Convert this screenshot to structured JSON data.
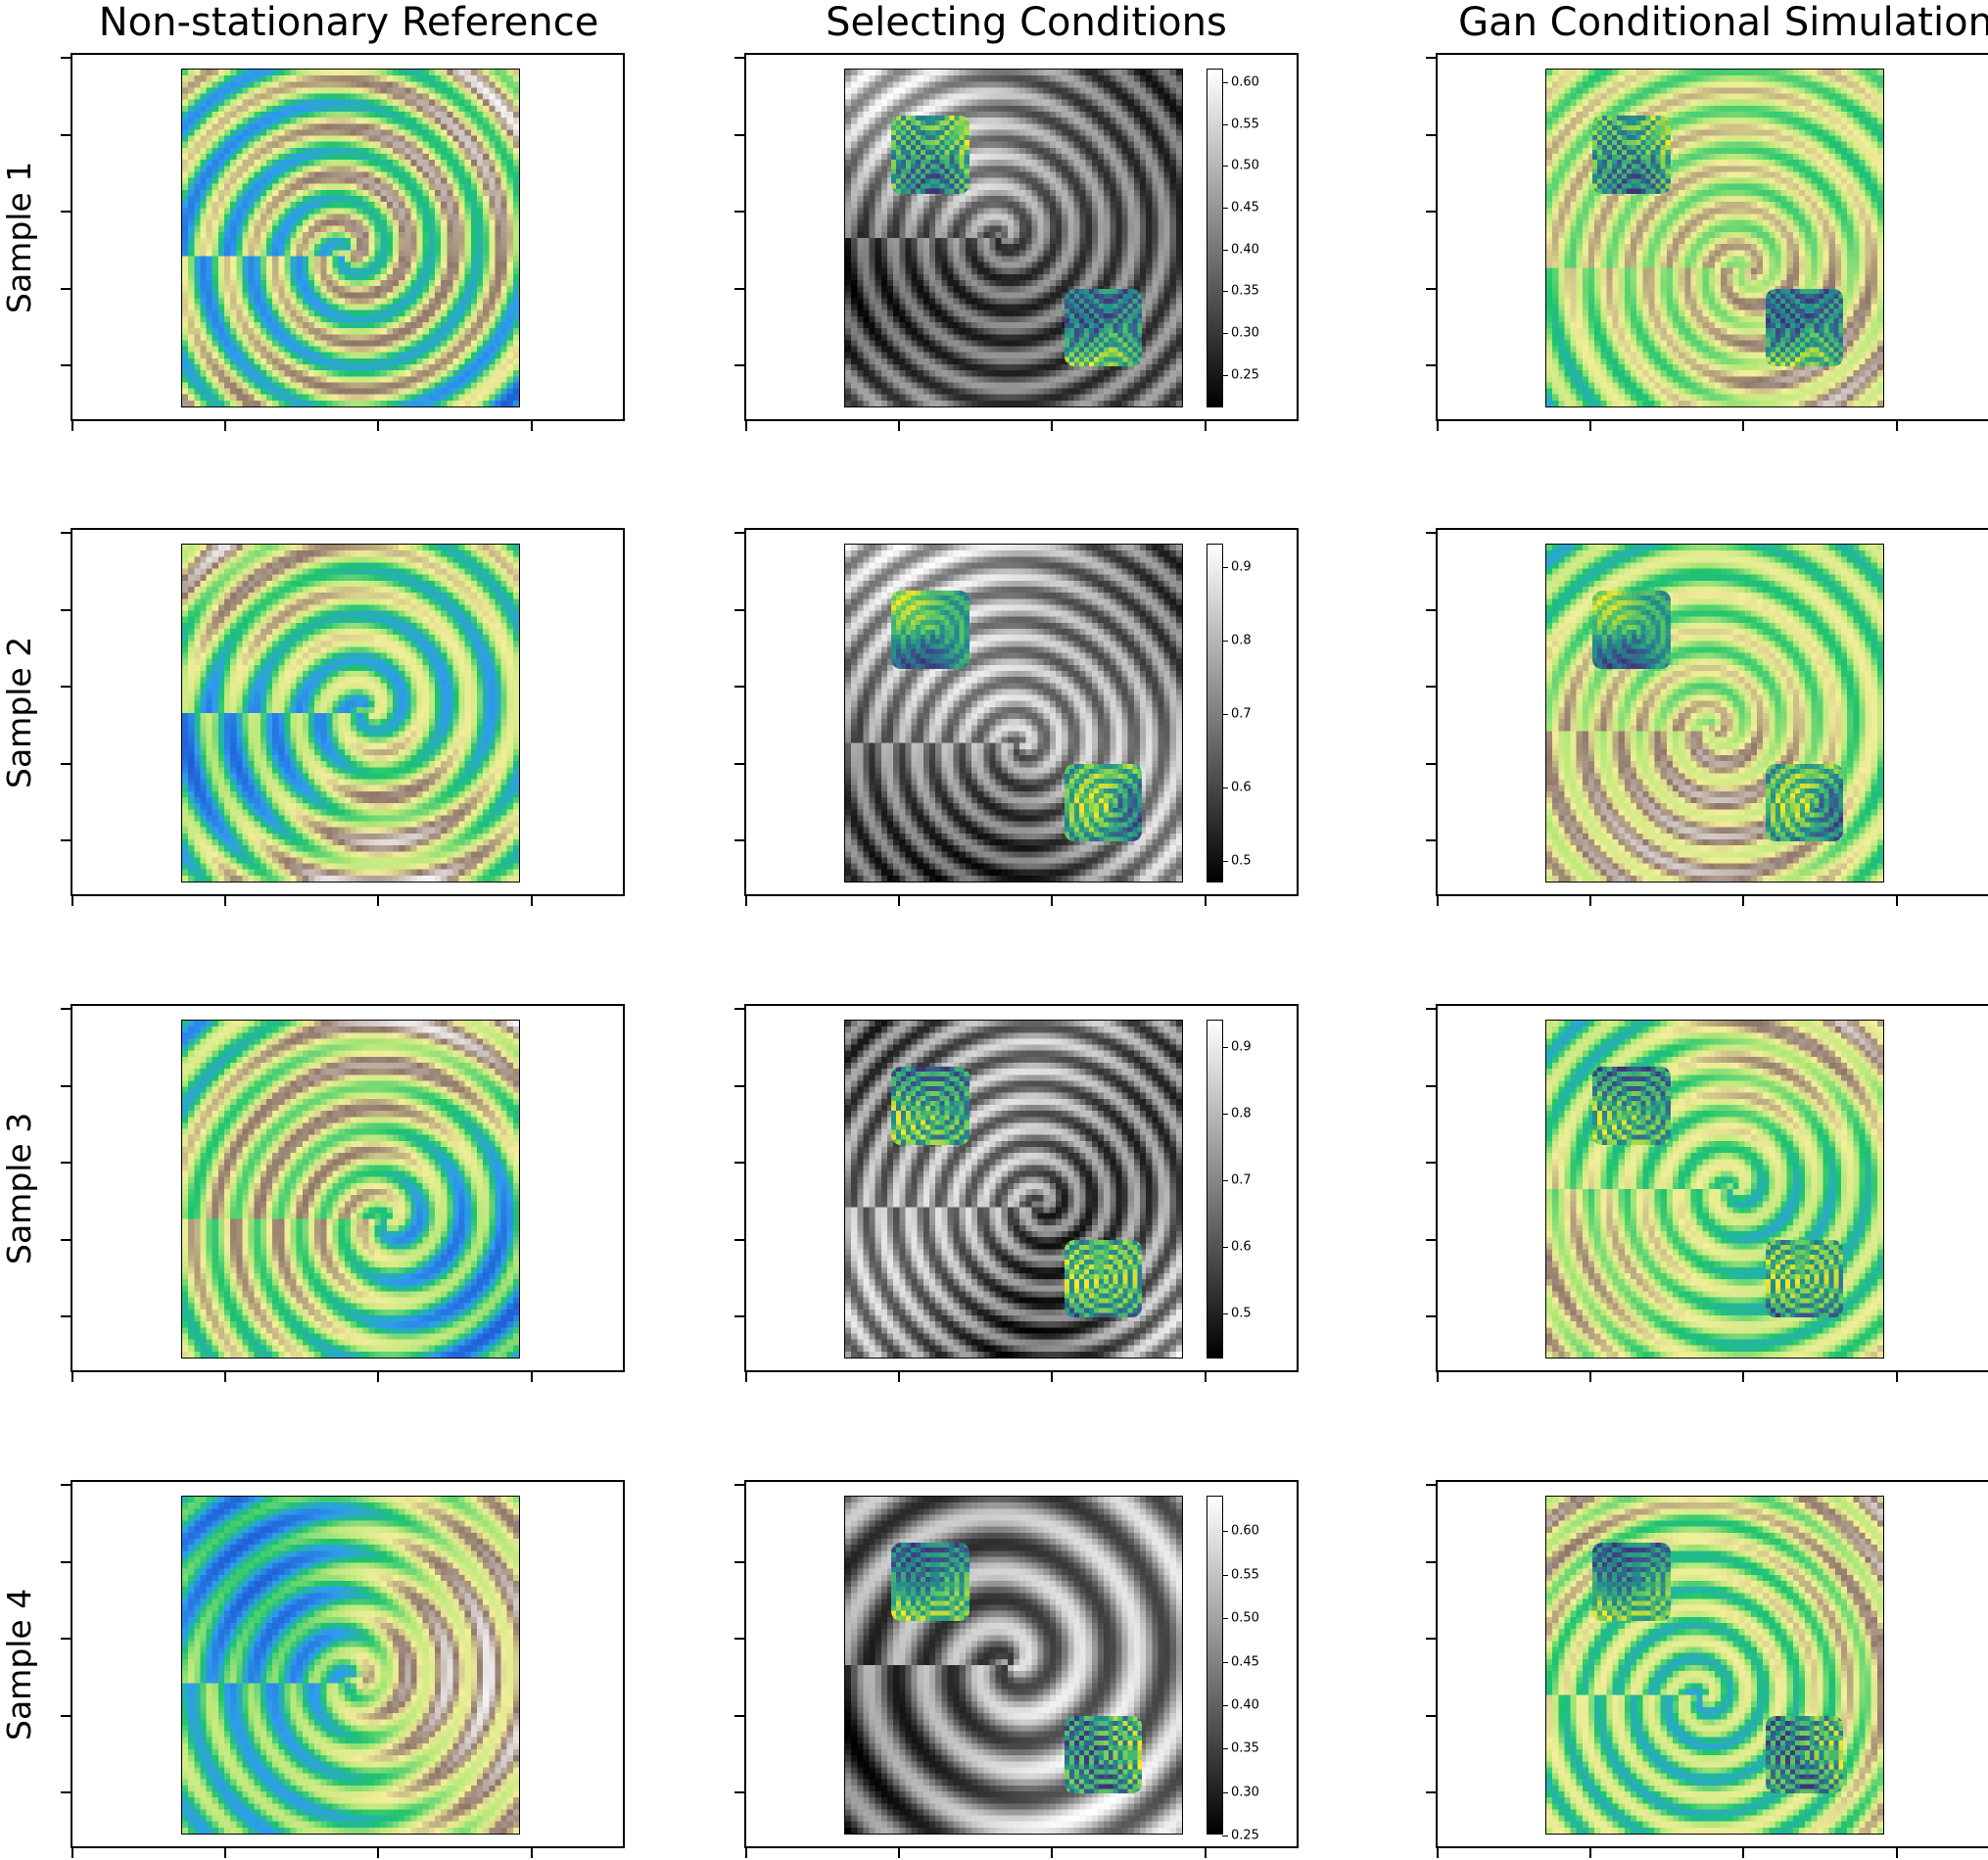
{
  "figure": {
    "column_titles": [
      "Non-stationary Reference",
      "Selecting Conditions",
      "Gan Conditional Simulation"
    ],
    "row_labels": [
      "Sample 1",
      "Sample 2",
      "Sample 3",
      "Sample 4"
    ],
    "panels": {
      "reference": "terrain-colormap spatial field",
      "conditions": "grayscale field with two viridis conditioning patches",
      "simulation": "terrain-colormap simulated field with two viridis conditioning patches"
    },
    "colorbars": [
      {
        "sample": "Sample 1",
        "ticks": [
          "0.60",
          "0.55",
          "0.50",
          "0.45",
          "0.40",
          "0.35",
          "0.30",
          "0.25"
        ],
        "min": 0.21,
        "max": 0.615
      },
      {
        "sample": "Sample 2",
        "ticks": [
          "0.9",
          "0.8",
          "0.7",
          "0.6",
          "0.5"
        ],
        "min": 0.47,
        "max": 0.93
      },
      {
        "sample": "Sample 3",
        "ticks": [
          "0.9",
          "0.8",
          "0.7",
          "0.6",
          "0.5"
        ],
        "min": 0.43,
        "max": 0.94
      },
      {
        "sample": "Sample 4",
        "ticks": [
          "0.60",
          "0.55",
          "0.50",
          "0.45",
          "0.40",
          "0.35",
          "0.30",
          "0.25"
        ],
        "min": 0.25,
        "max": 0.64
      }
    ],
    "colors": {
      "terrain": [
        "#1f5fd6",
        "#2f9cf0",
        "#1ec46e",
        "#b9e87a",
        "#f3ee9a",
        "#8f776a",
        "#f6f3f2"
      ],
      "viridis": [
        "#440154",
        "#3b528b",
        "#21918c",
        "#5ec962",
        "#fde725"
      ],
      "gray": [
        "#000000",
        "#ffffff"
      ]
    }
  }
}
